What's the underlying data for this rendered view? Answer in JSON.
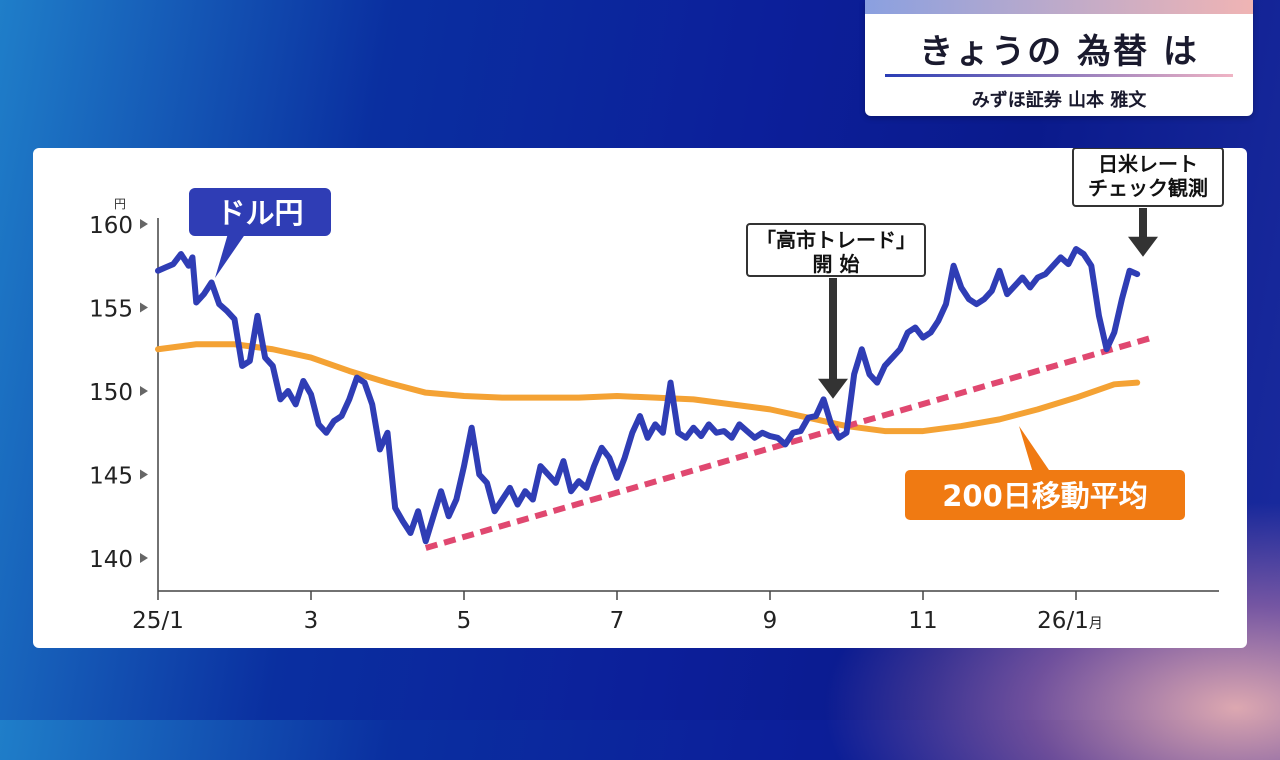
{
  "header": {
    "title": "きょうの 為替 は",
    "subtitle": "みずほ証券 山本 雅文"
  },
  "chart_data": {
    "type": "line",
    "y_unit": "円",
    "ylim": [
      140,
      162
    ],
    "y_ticks": [
      "160",
      "155",
      "150",
      "145",
      "140"
    ],
    "x_ticks": [
      {
        "label": "25/1",
        "month": 0
      },
      {
        "label": "3",
        "month": 2
      },
      {
        "label": "5",
        "month": 4
      },
      {
        "label": "7",
        "month": 6
      },
      {
        "label": "9",
        "month": 8
      },
      {
        "label": "11",
        "month": 10
      },
      {
        "label": "26/1",
        "suffix": "月",
        "month": 12
      }
    ],
    "series": [
      {
        "name": "ドル円",
        "color": "#2f3db5",
        "values": [
          [
            0.0,
            157.2
          ],
          [
            0.1,
            157.4
          ],
          [
            0.2,
            157.6
          ],
          [
            0.3,
            158.2
          ],
          [
            0.4,
            157.5
          ],
          [
            0.45,
            158.0
          ],
          [
            0.5,
            155.3
          ],
          [
            0.6,
            155.8
          ],
          [
            0.7,
            156.5
          ],
          [
            0.8,
            155.2
          ],
          [
            0.9,
            154.8
          ],
          [
            1.0,
            154.3
          ],
          [
            1.1,
            151.5
          ],
          [
            1.2,
            151.8
          ],
          [
            1.3,
            154.5
          ],
          [
            1.4,
            152.0
          ],
          [
            1.5,
            151.5
          ],
          [
            1.6,
            149.5
          ],
          [
            1.7,
            150.0
          ],
          [
            1.8,
            149.2
          ],
          [
            1.9,
            150.6
          ],
          [
            2.0,
            149.8
          ],
          [
            2.1,
            148.0
          ],
          [
            2.2,
            147.5
          ],
          [
            2.3,
            148.2
          ],
          [
            2.4,
            148.5
          ],
          [
            2.5,
            149.5
          ],
          [
            2.6,
            150.8
          ],
          [
            2.7,
            150.5
          ],
          [
            2.8,
            149.2
          ],
          [
            2.9,
            146.5
          ],
          [
            3.0,
            147.5
          ],
          [
            3.1,
            143.0
          ],
          [
            3.2,
            142.2
          ],
          [
            3.3,
            141.5
          ],
          [
            3.4,
            142.8
          ],
          [
            3.5,
            141.0
          ],
          [
            3.6,
            142.5
          ],
          [
            3.7,
            144.0
          ],
          [
            3.8,
            142.5
          ],
          [
            3.9,
            143.5
          ],
          [
            4.0,
            145.5
          ],
          [
            4.1,
            147.8
          ],
          [
            4.2,
            145.0
          ],
          [
            4.3,
            144.5
          ],
          [
            4.4,
            142.8
          ],
          [
            4.5,
            143.5
          ],
          [
            4.6,
            144.2
          ],
          [
            4.7,
            143.2
          ],
          [
            4.8,
            144.0
          ],
          [
            4.9,
            143.5
          ],
          [
            5.0,
            145.5
          ],
          [
            5.1,
            145.0
          ],
          [
            5.2,
            144.5
          ],
          [
            5.3,
            145.8
          ],
          [
            5.4,
            144.0
          ],
          [
            5.5,
            144.6
          ],
          [
            5.6,
            144.2
          ],
          [
            5.7,
            145.5
          ],
          [
            5.8,
            146.6
          ],
          [
            5.9,
            146.0
          ],
          [
            6.0,
            144.8
          ],
          [
            6.1,
            146.0
          ],
          [
            6.2,
            147.5
          ],
          [
            6.3,
            148.5
          ],
          [
            6.4,
            147.2
          ],
          [
            6.5,
            148.0
          ],
          [
            6.6,
            147.5
          ],
          [
            6.7,
            150.5
          ],
          [
            6.8,
            147.5
          ],
          [
            6.9,
            147.2
          ],
          [
            7.0,
            147.8
          ],
          [
            7.1,
            147.3
          ],
          [
            7.2,
            148.0
          ],
          [
            7.3,
            147.5
          ],
          [
            7.4,
            147.6
          ],
          [
            7.5,
            147.2
          ],
          [
            7.6,
            148.0
          ],
          [
            7.7,
            147.6
          ],
          [
            7.8,
            147.2
          ],
          [
            7.9,
            147.5
          ],
          [
            8.0,
            147.3
          ],
          [
            8.1,
            147.2
          ],
          [
            8.2,
            146.8
          ],
          [
            8.3,
            147.5
          ],
          [
            8.4,
            147.6
          ],
          [
            8.5,
            148.4
          ],
          [
            8.6,
            148.5
          ],
          [
            8.7,
            149.5
          ],
          [
            8.8,
            148.0
          ],
          [
            8.9,
            147.2
          ],
          [
            9.0,
            147.5
          ],
          [
            9.1,
            151.0
          ],
          [
            9.2,
            152.5
          ],
          [
            9.3,
            151.0
          ],
          [
            9.4,
            150.5
          ],
          [
            9.5,
            151.5
          ],
          [
            9.6,
            152.0
          ],
          [
            9.7,
            152.5
          ],
          [
            9.8,
            153.5
          ],
          [
            9.9,
            153.8
          ],
          [
            10.0,
            153.2
          ],
          [
            10.1,
            153.5
          ],
          [
            10.2,
            154.2
          ],
          [
            10.3,
            155.2
          ],
          [
            10.4,
            157.5
          ],
          [
            10.5,
            156.2
          ],
          [
            10.6,
            155.5
          ],
          [
            10.7,
            155.2
          ],
          [
            10.8,
            155.5
          ],
          [
            10.9,
            156.0
          ],
          [
            11.0,
            157.2
          ],
          [
            11.1,
            155.8
          ],
          [
            11.2,
            156.3
          ],
          [
            11.3,
            156.8
          ],
          [
            11.4,
            156.2
          ],
          [
            11.5,
            156.8
          ],
          [
            11.6,
            157.0
          ],
          [
            11.7,
            157.5
          ],
          [
            11.8,
            158.0
          ],
          [
            11.9,
            157.6
          ],
          [
            12.0,
            158.5
          ],
          [
            12.1,
            158.2
          ],
          [
            12.2,
            157.5
          ],
          [
            12.3,
            154.5
          ],
          [
            12.4,
            152.5
          ],
          [
            12.5,
            153.5
          ],
          [
            12.6,
            155.5
          ],
          [
            12.7,
            157.2
          ],
          [
            12.8,
            157.0
          ]
        ]
      },
      {
        "name": "200日移動平均",
        "color": "#f4a234",
        "values": [
          [
            0.0,
            152.5
          ],
          [
            0.5,
            152.8
          ],
          [
            1.0,
            152.8
          ],
          [
            1.5,
            152.5
          ],
          [
            2.0,
            152.0
          ],
          [
            2.5,
            151.2
          ],
          [
            3.0,
            150.5
          ],
          [
            3.5,
            149.9
          ],
          [
            4.0,
            149.7
          ],
          [
            4.5,
            149.6
          ],
          [
            5.0,
            149.6
          ],
          [
            5.5,
            149.6
          ],
          [
            6.0,
            149.7
          ],
          [
            6.5,
            149.6
          ],
          [
            7.0,
            149.5
          ],
          [
            7.5,
            149.2
          ],
          [
            8.0,
            148.9
          ],
          [
            8.5,
            148.4
          ],
          [
            9.0,
            147.9
          ],
          [
            9.5,
            147.6
          ],
          [
            10.0,
            147.6
          ],
          [
            10.5,
            147.9
          ],
          [
            11.0,
            148.3
          ],
          [
            11.5,
            148.9
          ],
          [
            12.0,
            149.6
          ],
          [
            12.5,
            150.4
          ],
          [
            12.8,
            150.5
          ]
        ]
      }
    ],
    "trendline": {
      "color": "#e04870",
      "points": [
        [
          3.5,
          140.6
        ],
        [
          13.0,
          153.2
        ]
      ]
    },
    "annotations": [
      {
        "text": "「高市トレード」\n開 始",
        "target": [
          9.0,
          149.3
        ]
      },
      {
        "text": "日米レート\nチェック観測",
        "target": [
          12.4,
          157.8
        ]
      }
    ],
    "legend_labels": {
      "usdjpy": "ドル円",
      "ma200": "200日移動平均"
    }
  }
}
